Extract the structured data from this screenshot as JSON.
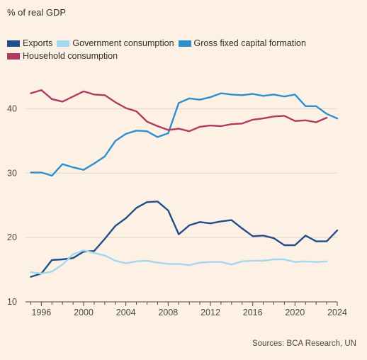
{
  "chart_data": {
    "type": "line",
    "subtitle": "% of real GDP",
    "source": "Sources: BCA Research, UN",
    "xlim": [
      1994.5,
      2024
    ],
    "ylim": [
      10,
      45
    ],
    "x_ticks": [
      1996,
      2000,
      2004,
      2008,
      2012,
      2016,
      2020,
      2024
    ],
    "y_ticks": [
      10,
      20,
      30,
      40
    ],
    "grid": "horizontal",
    "legend_position": "top-left",
    "series": [
      {
        "name": "Exports",
        "color": "#1f4e8c",
        "x": [
          1995,
          1996,
          1997,
          1998,
          1999,
          2000,
          2001,
          2002,
          2003,
          2004,
          2005,
          2006,
          2007,
          2008,
          2009,
          2010,
          2011,
          2012,
          2013,
          2014,
          2015,
          2016,
          2017,
          2018,
          2019,
          2020,
          2021,
          2022,
          2023,
          2024
        ],
        "y": [
          13.9,
          14.4,
          16.5,
          16.6,
          16.8,
          17.8,
          17.9,
          19.8,
          21.8,
          23.0,
          24.6,
          25.5,
          25.6,
          24.2,
          20.5,
          21.9,
          22.4,
          22.2,
          22.5,
          22.7,
          21.4,
          20.2,
          20.3,
          19.9,
          18.8,
          18.8,
          20.3,
          19.4,
          19.4,
          21.1
        ]
      },
      {
        "name": "Government consumption",
        "color": "#a3d8ee",
        "x": [
          1995,
          1996,
          1997,
          1998,
          1999,
          2000,
          2001,
          2002,
          2003,
          2004,
          2005,
          2006,
          2007,
          2008,
          2009,
          2010,
          2011,
          2012,
          2013,
          2014,
          2015,
          2016,
          2017,
          2018,
          2019,
          2020,
          2021,
          2022,
          2023
        ],
        "y": [
          14.6,
          14.4,
          14.7,
          15.8,
          17.4,
          18.0,
          17.6,
          17.2,
          16.4,
          16.0,
          16.3,
          16.4,
          16.1,
          15.9,
          15.9,
          15.7,
          16.1,
          16.2,
          16.2,
          15.8,
          16.3,
          16.4,
          16.4,
          16.6,
          16.6,
          16.2,
          16.3,
          16.2,
          16.3
        ]
      },
      {
        "name": "Gross fixed capital formation",
        "color": "#2b8fd1",
        "x": [
          1995,
          1996,
          1997,
          1998,
          1999,
          2000,
          2001,
          2002,
          2003,
          2004,
          2005,
          2006,
          2007,
          2008,
          2009,
          2010,
          2011,
          2012,
          2013,
          2014,
          2015,
          2016,
          2017,
          2018,
          2019,
          2020,
          2021,
          2022,
          2023,
          2024
        ],
        "y": [
          30.1,
          30.1,
          29.6,
          31.4,
          30.9,
          30.5,
          31.5,
          32.6,
          35.0,
          36.1,
          36.6,
          36.5,
          35.6,
          36.2,
          40.9,
          41.6,
          41.4,
          41.8,
          42.4,
          42.2,
          42.1,
          42.3,
          42.0,
          42.2,
          41.9,
          42.2,
          40.4,
          40.4,
          39.2,
          38.5
        ]
      },
      {
        "name": "Household consumption",
        "color": "#b03a62",
        "x": [
          1995,
          1996,
          1997,
          1998,
          1999,
          2000,
          2001,
          2002,
          2003,
          2004,
          2005,
          2006,
          2007,
          2008,
          2009,
          2010,
          2011,
          2012,
          2013,
          2014,
          2015,
          2016,
          2017,
          2018,
          2019,
          2020,
          2021,
          2022,
          2023
        ],
        "y": [
          42.4,
          42.9,
          41.5,
          41.1,
          41.9,
          42.7,
          42.2,
          42.1,
          41.0,
          40.1,
          39.6,
          38.0,
          37.3,
          36.7,
          36.9,
          36.5,
          37.2,
          37.4,
          37.3,
          37.6,
          37.7,
          38.3,
          38.5,
          38.8,
          38.9,
          38.1,
          38.2,
          37.9,
          38.6
        ]
      }
    ]
  }
}
